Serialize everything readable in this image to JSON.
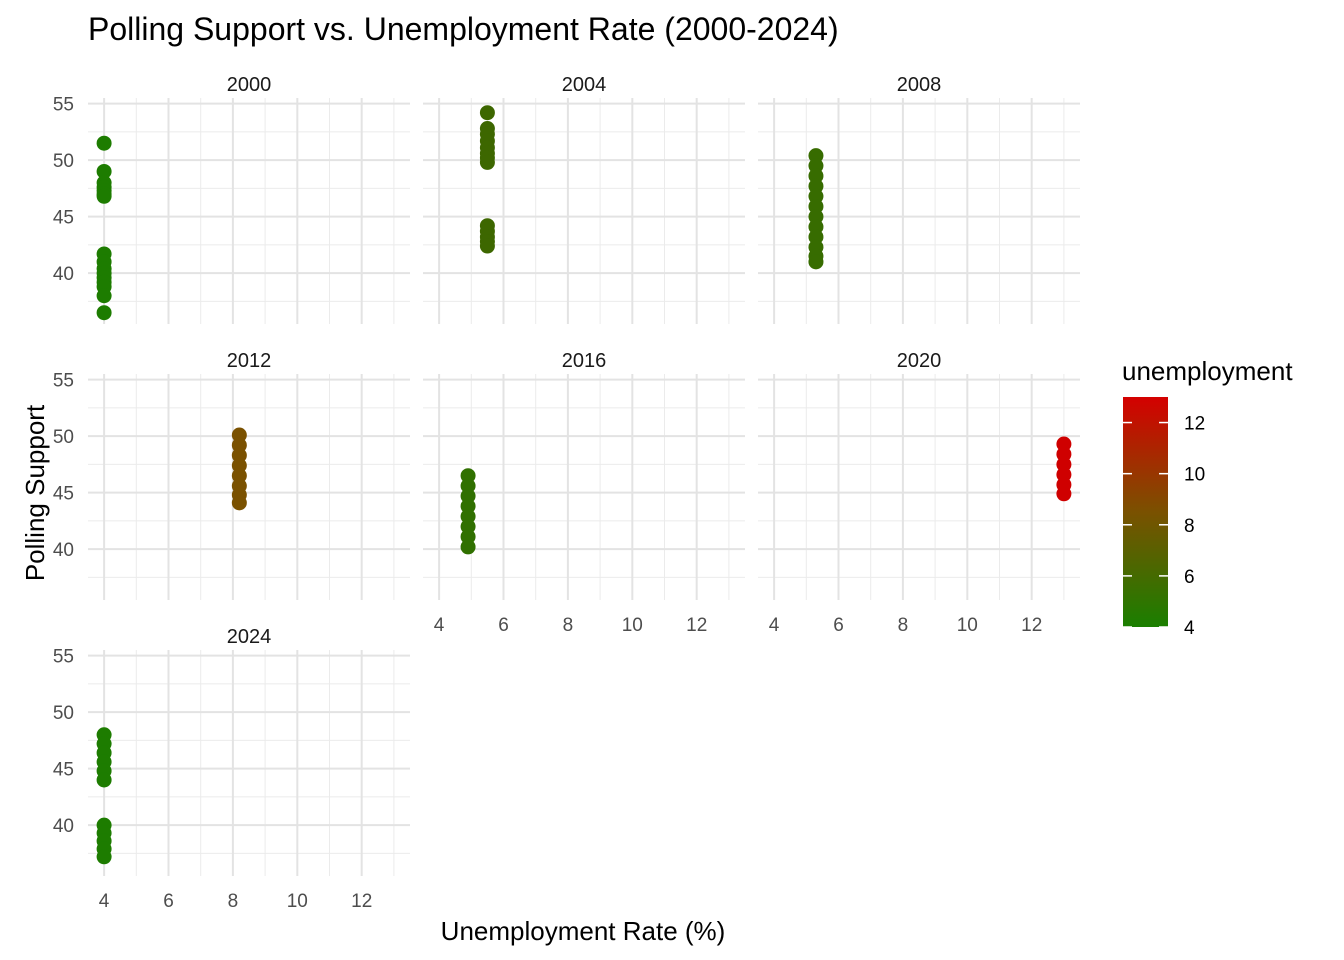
{
  "chart_data": {
    "type": "scatter",
    "title": "Polling Support vs. Unemployment Rate (2000-2024)",
    "xlabel": "Unemployment Rate (%)",
    "ylabel": "Polling Support",
    "xlim": [
      3.5,
      13.5
    ],
    "ylim": [
      35.5,
      55.5
    ],
    "x_ticks": [
      4,
      6,
      8,
      10,
      12
    ],
    "y_ticks": [
      40,
      45,
      50,
      55
    ],
    "grid": true,
    "legend": {
      "title": "unemployment",
      "position": "right",
      "type": "colorbar",
      "range": [
        4,
        13
      ],
      "ticks": [
        4,
        6,
        8,
        10,
        12
      ],
      "low_color": "#1a7f00",
      "high_color": "#d40000"
    },
    "facets": [
      {
        "label": "2000",
        "unemployment": 4.0,
        "color": "#1d7c00",
        "polling": [
          51.5,
          49.0,
          48.0,
          47.6,
          47.3,
          47.0,
          46.8,
          41.7,
          41.0,
          40.4,
          40.0,
          39.6,
          39.2,
          38.8,
          38.0,
          36.5
        ]
      },
      {
        "label": "2004",
        "unemployment": 5.5,
        "color": "#3d6700",
        "polling": [
          54.2,
          52.8,
          52.3,
          51.7,
          51.1,
          50.6,
          50.2,
          49.8,
          44.2,
          43.7,
          43.2,
          42.8,
          42.4
        ]
      },
      {
        "label": "2008",
        "unemployment": 5.3,
        "color": "#376c00",
        "polling": [
          50.4,
          49.5,
          48.6,
          47.7,
          46.8,
          45.9,
          45.0,
          44.1,
          43.2,
          42.3,
          41.5,
          41.0
        ]
      },
      {
        "label": "2012",
        "unemployment": 8.2,
        "color": "#7a5100",
        "polling": [
          50.1,
          49.2,
          48.3,
          47.4,
          46.5,
          45.6,
          44.8,
          44.1
        ]
      },
      {
        "label": "2016",
        "unemployment": 4.9,
        "color": "#307000",
        "polling": [
          46.5,
          45.6,
          44.7,
          43.8,
          42.9,
          42.0,
          41.1,
          40.2
        ]
      },
      {
        "label": "2020",
        "unemployment": 13.0,
        "color": "#cf0000",
        "polling": [
          49.3,
          48.4,
          47.5,
          46.6,
          45.7,
          44.9
        ]
      },
      {
        "label": "2024",
        "unemployment": 4.0,
        "color": "#1d7c00",
        "polling": [
          48.0,
          47.2,
          46.4,
          45.6,
          44.8,
          44.0,
          40.0,
          39.3,
          38.6,
          37.9,
          37.2
        ]
      }
    ]
  }
}
